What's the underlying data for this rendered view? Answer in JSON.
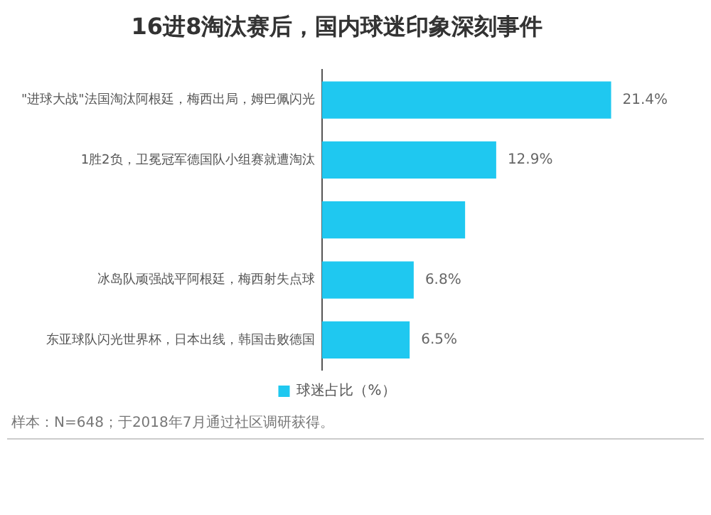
{
  "chart_data": {
    "type": "bar",
    "orientation": "horizontal",
    "title": "16进8淘汰赛后，国内球迷印象深刻事件",
    "categories": [
      "\"进球大战\"法国淘汰阿根廷，梅西出局，姆巴佩闪光",
      "1胜2负，卫冕冠军德国队小组赛就遭淘汰",
      null,
      "冰岛队顽强战平阿根廷，梅西射失点球",
      "东亚球队闪光世界杯，日本出线，韩国击败德国"
    ],
    "series": [
      {
        "name": "球迷占比（%）",
        "color": "#1fc8f0",
        "values": [
          21.4,
          12.9,
          10.6,
          6.8,
          6.5
        ],
        "value_labels": [
          "21.4%",
          "12.9%",
          null,
          "6.8%",
          "6.5%"
        ]
      }
    ],
    "legend": "bottom",
    "grid": false,
    "tick_labels": "y",
    "annotations": [
      "样本：N=648；于2018年7月通过社区调研获得。"
    ]
  }
}
